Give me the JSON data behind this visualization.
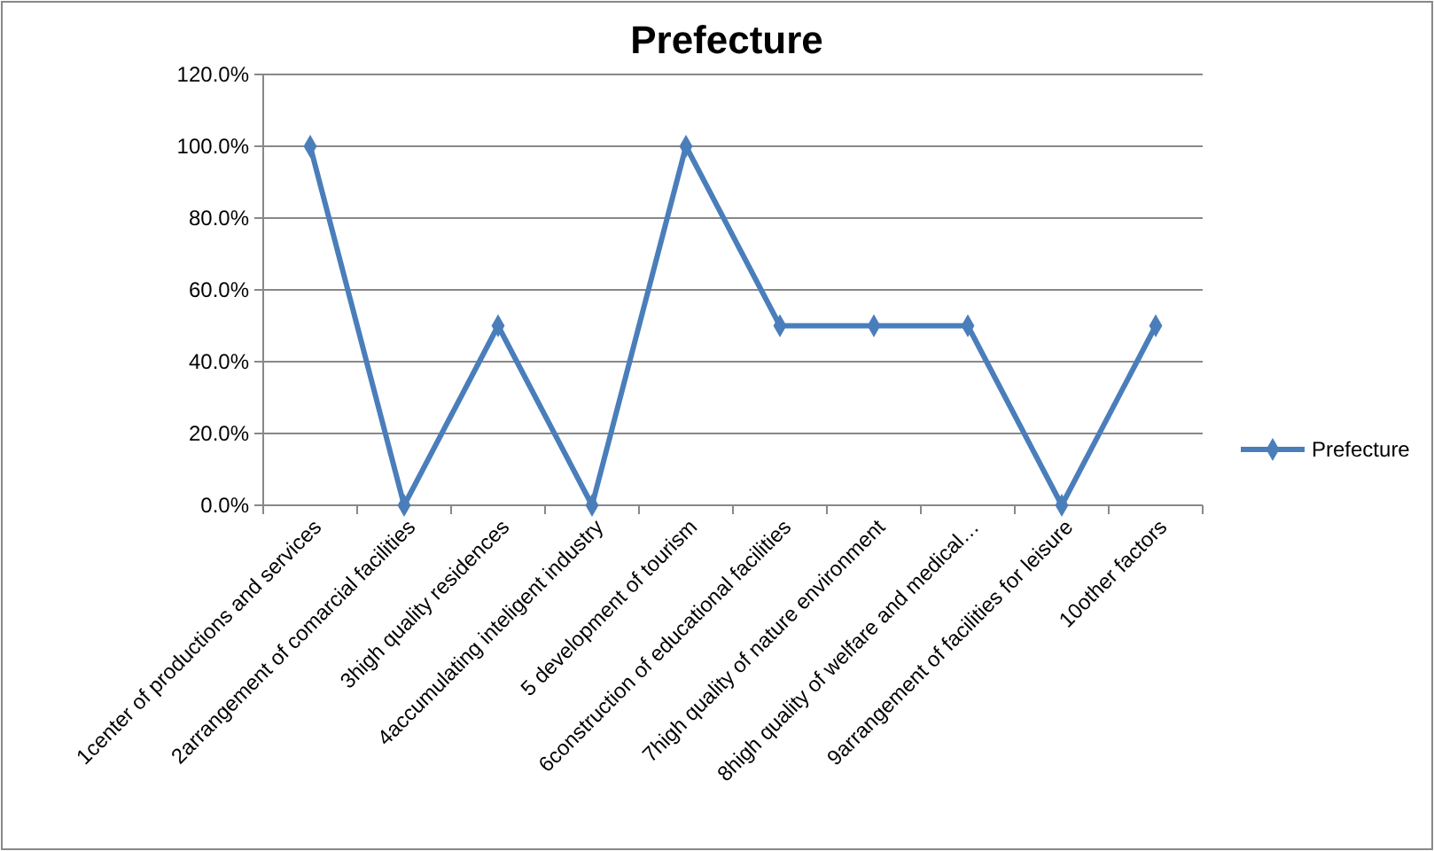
{
  "chart_data": {
    "type": "line",
    "title": "Prefecture",
    "categories": [
      "1center of productions and services",
      "2arrangement of comarcial facilities",
      "3high quality residences",
      "4accumulating inteligent industry",
      "5 development of tourism",
      "6construction of educational facilities",
      "7high quality of nature environment",
      "8high quality of welfare and medical…",
      "9arrangement of facilities for leisure",
      "10other factors"
    ],
    "series": [
      {
        "name": "Prefecture",
        "color": "#4a7ebb",
        "values": [
          100,
          0,
          50,
          0,
          100,
          50,
          50,
          50,
          0,
          50
        ]
      }
    ],
    "ylim": [
      0,
      120
    ],
    "yticks": [
      {
        "value": 0,
        "label": "0.0%"
      },
      {
        "value": 20,
        "label": "20.0%"
      },
      {
        "value": 40,
        "label": "40.0%"
      },
      {
        "value": 60,
        "label": "60.0%"
      },
      {
        "value": 80,
        "label": "80.0%"
      },
      {
        "value": 100,
        "label": "100.0%"
      },
      {
        "value": 120,
        "label": "120.0%"
      }
    ],
    "grid": "y",
    "legend": "right",
    "marker": "diamond",
    "line_style": "solid"
  }
}
